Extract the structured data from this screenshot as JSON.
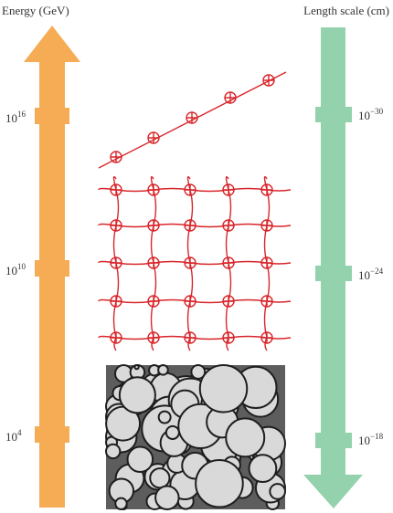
{
  "left_axis": {
    "title": "Energy (GeV)",
    "labels": [
      {
        "base": "10",
        "exponent": "16"
      },
      {
        "base": "10",
        "exponent": "10"
      },
      {
        "base": "10",
        "exponent": "4"
      }
    ]
  },
  "right_axis": {
    "title": "Length scale (cm)",
    "labels": [
      {
        "base": "10",
        "exponent": "−30"
      },
      {
        "base": "10",
        "exponent": "−24"
      },
      {
        "base": "10",
        "exponent": "−18"
      }
    ]
  }
}
